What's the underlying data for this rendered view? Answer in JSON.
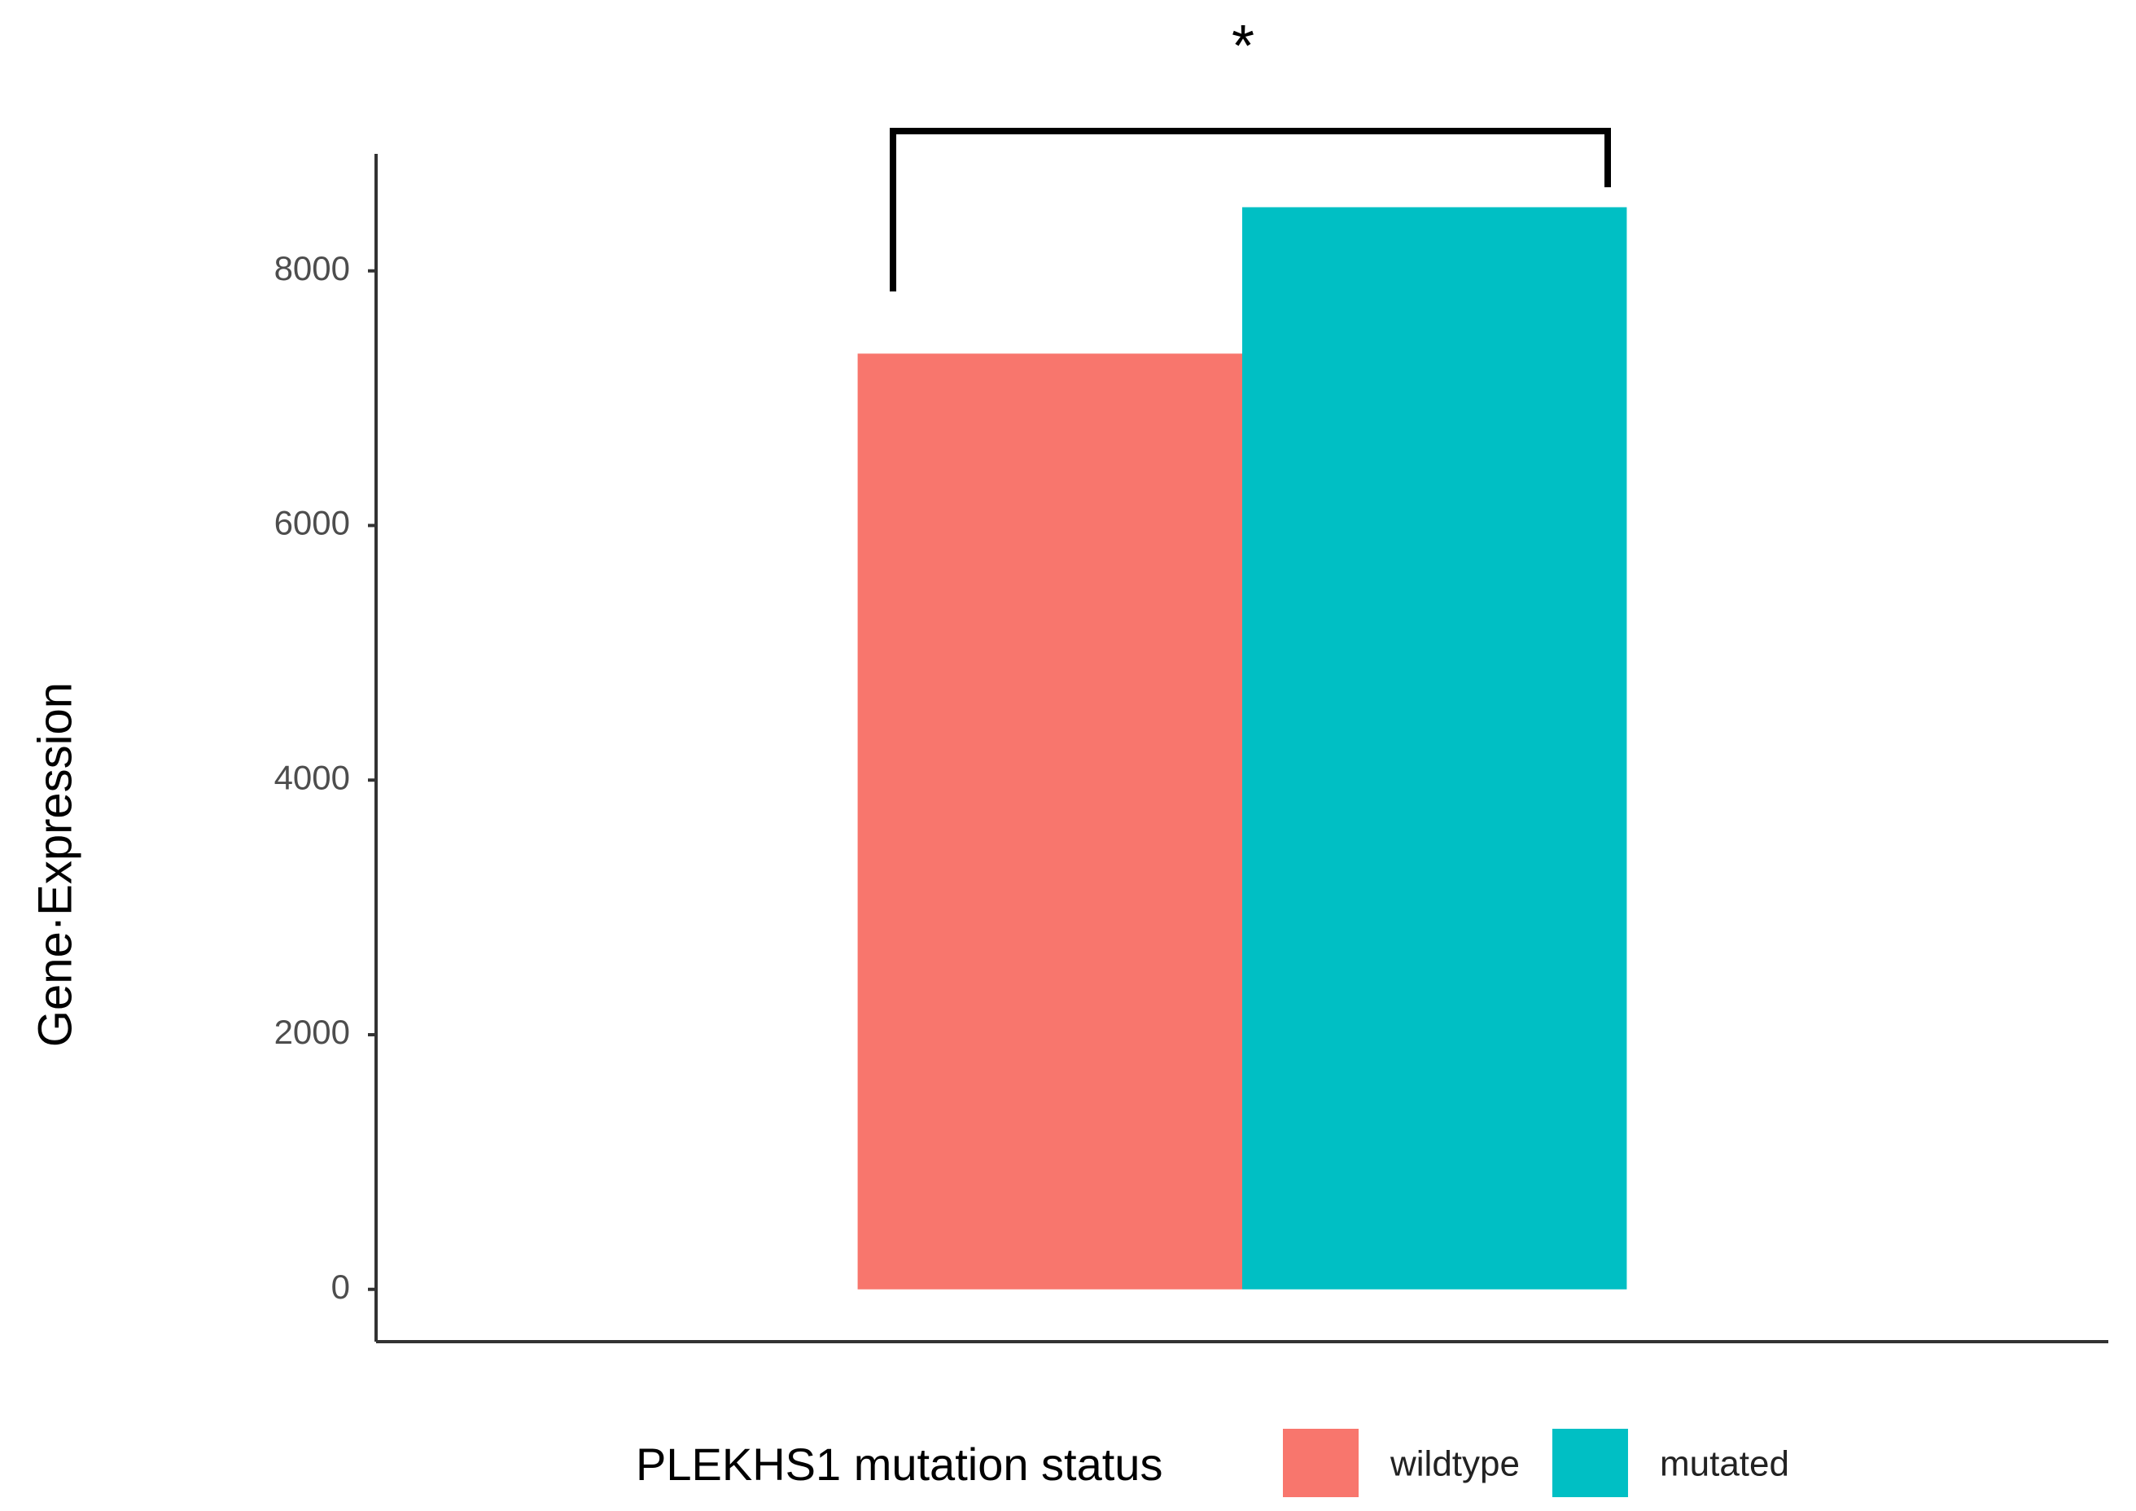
{
  "chart_data": {
    "type": "bar",
    "y_label": "Gene·Expression",
    "annotation": "*",
    "legend_title": "PLEKHS1 mutation status",
    "categories": [
      null
    ],
    "series": [
      {
        "name": "wildtype",
        "color": "#f8766d",
        "values": [
          7350
        ]
      },
      {
        "name": "mutated",
        "color": "#00bfc4",
        "values": [
          8500
        ]
      }
    ],
    "ylim": [
      -411,
      8919
    ],
    "yticks": [
      0,
      2000,
      4000,
      6000,
      8000
    ],
    "grid": false,
    "legend": "bottom"
  }
}
